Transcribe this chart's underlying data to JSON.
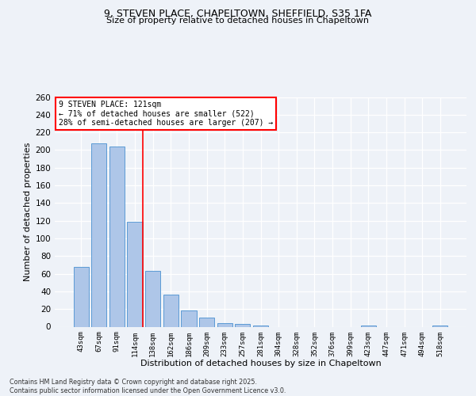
{
  "title_line1": "9, STEVEN PLACE, CHAPELTOWN, SHEFFIELD, S35 1FA",
  "title_line2": "Size of property relative to detached houses in Chapeltown",
  "xlabel": "Distribution of detached houses by size in Chapeltown",
  "ylabel": "Number of detached properties",
  "categories": [
    "43sqm",
    "67sqm",
    "91sqm",
    "114sqm",
    "138sqm",
    "162sqm",
    "186sqm",
    "209sqm",
    "233sqm",
    "257sqm",
    "281sqm",
    "304sqm",
    "328sqm",
    "352sqm",
    "376sqm",
    "399sqm",
    "423sqm",
    "447sqm",
    "471sqm",
    "494sqm",
    "518sqm"
  ],
  "values": [
    68,
    208,
    204,
    119,
    63,
    36,
    18,
    10,
    4,
    3,
    1,
    0,
    0,
    0,
    0,
    0,
    1,
    0,
    0,
    0,
    1
  ],
  "bar_color": "#aec6e8",
  "bar_edge_color": "#5b9bd5",
  "red_line_index": 3,
  "annotation_text": "9 STEVEN PLACE: 121sqm\n← 71% of detached houses are smaller (522)\n28% of semi-detached houses are larger (207) →",
  "annotation_box_color": "white",
  "annotation_box_edge": "red",
  "ylim": [
    0,
    260
  ],
  "yticks": [
    0,
    20,
    40,
    60,
    80,
    100,
    120,
    140,
    160,
    180,
    200,
    220,
    240,
    260
  ],
  "background_color": "#eef2f8",
  "grid_color": "white",
  "footer_line1": "Contains HM Land Registry data © Crown copyright and database right 2025.",
  "footer_line2": "Contains public sector information licensed under the Open Government Licence v3.0."
}
